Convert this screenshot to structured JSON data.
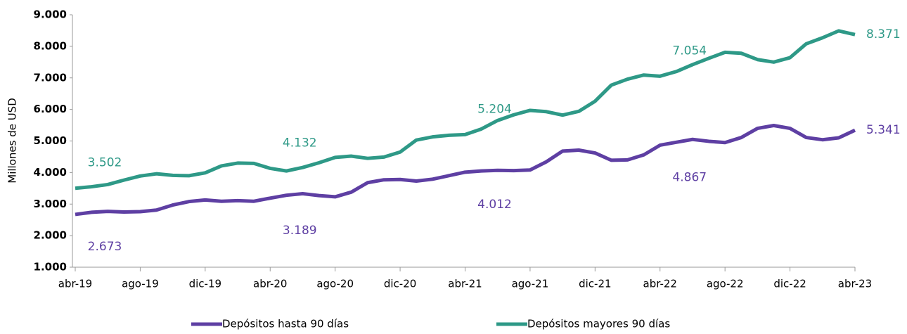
{
  "chart_data": {
    "type": "line",
    "y_label": "Millones de USD",
    "categories": [
      "abr-19",
      null,
      null,
      null,
      "ago-19",
      null,
      null,
      null,
      "dic-19",
      null,
      null,
      null,
      "abr-20",
      null,
      null,
      null,
      "ago-20",
      null,
      null,
      null,
      "dic-20",
      null,
      null,
      null,
      "abr-21",
      null,
      null,
      null,
      "ago-21",
      null,
      null,
      null,
      "dic-21",
      null,
      null,
      null,
      "abr-22",
      null,
      null,
      null,
      "ago-22",
      null,
      null,
      null,
      "dic-22",
      null,
      null,
      null,
      "abr-23"
    ],
    "ylim": [
      1000,
      9000
    ],
    "yticks": [
      {
        "value": 1000,
        "label": "1.000"
      },
      {
        "value": 2000,
        "label": "2.000"
      },
      {
        "value": 3000,
        "label": "3.000"
      },
      {
        "value": 4000,
        "label": "4.000"
      },
      {
        "value": 5000,
        "label": "5.000"
      },
      {
        "value": 6000,
        "label": "6.000"
      },
      {
        "value": 7000,
        "label": "7.000"
      },
      {
        "value": 8000,
        "label": "8.000"
      },
      {
        "value": 9000,
        "label": "9.000"
      }
    ],
    "grid": false,
    "legend": "bottom",
    "series": [
      {
        "name": "Depósitos hasta 90 días",
        "color": "#5e3fa3",
        "values": [
          2673,
          2740,
          2770,
          2750,
          2760,
          2810,
          2970,
          3080,
          3130,
          3090,
          3110,
          3090,
          3189,
          3280,
          3330,
          3270,
          3230,
          3380,
          3680,
          3770,
          3780,
          3730,
          3790,
          3900,
          4012,
          4050,
          4070,
          4060,
          4080,
          4340,
          4680,
          4710,
          4620,
          4390,
          4400,
          4560,
          4867,
          4960,
          5050,
          4990,
          4950,
          5110,
          5400,
          5490,
          5400,
          5110,
          5040,
          5100,
          5341
        ],
        "value_labels": [
          "2.673",
          null,
          null,
          null,
          null,
          null,
          null,
          null,
          null,
          null,
          null,
          null,
          "3.189",
          null,
          null,
          null,
          null,
          null,
          null,
          null,
          null,
          null,
          null,
          null,
          "4.012",
          null,
          null,
          null,
          null,
          null,
          null,
          null,
          null,
          null,
          null,
          null,
          "4.867",
          null,
          null,
          null,
          null,
          null,
          null,
          null,
          null,
          null,
          null,
          null,
          "5.341"
        ]
      },
      {
        "name": "Depósitos mayores 90 días",
        "color": "#2e9987",
        "values": [
          3502,
          3550,
          3620,
          3760,
          3890,
          3960,
          3910,
          3900,
          3990,
          4210,
          4300,
          4290,
          4132,
          4050,
          4160,
          4310,
          4480,
          4520,
          4450,
          4490,
          4650,
          5030,
          5130,
          5180,
          5204,
          5380,
          5650,
          5830,
          5970,
          5930,
          5820,
          5940,
          6260,
          6770,
          6960,
          7090,
          7054,
          7200,
          7420,
          7620,
          7810,
          7780,
          7580,
          7500,
          7640,
          8080,
          8270,
          8490,
          8371
        ],
        "value_labels": [
          "3.502",
          null,
          null,
          null,
          null,
          null,
          null,
          null,
          null,
          null,
          null,
          null,
          "4.132",
          null,
          null,
          null,
          null,
          null,
          null,
          null,
          null,
          null,
          null,
          null,
          "5.204",
          null,
          null,
          null,
          null,
          null,
          null,
          null,
          null,
          null,
          null,
          null,
          "7.054",
          null,
          null,
          null,
          null,
          null,
          null,
          null,
          null,
          null,
          null,
          null,
          "8.371"
        ]
      }
    ]
  }
}
